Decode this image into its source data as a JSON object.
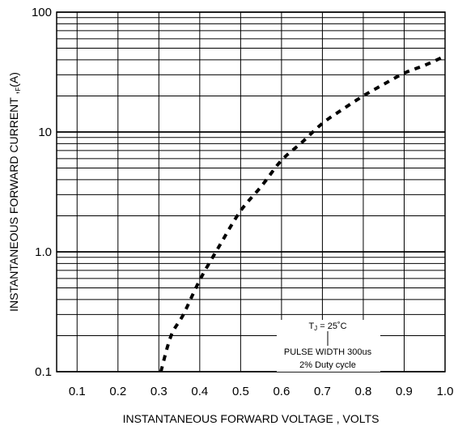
{
  "chart_data": {
    "type": "line",
    "title": "",
    "xlabel": "INSTANTANEOUS FORWARD VOLTAGE , VOLTS",
    "ylabel_prefix": "INSTANTANEOUS  FORWARD CURRENT ,",
    "ylabel_sub": "F",
    "ylabel_unit": "(A)",
    "xlim": [
      0.05,
      1.0
    ],
    "ylim": [
      0.1,
      100
    ],
    "y_scale": "log",
    "grid": true,
    "x_ticks": [
      0.1,
      0.2,
      0.3,
      0.4,
      0.5,
      0.6,
      0.7,
      0.8,
      0.9,
      1.0
    ],
    "x_tick_labels": [
      "0.1",
      "0.2",
      "0.3",
      "0.4",
      "0.5",
      "0.6",
      "0.7",
      "0.8",
      "0.9",
      "1.0"
    ],
    "y_tick_values": [
      0.1,
      1.0,
      10,
      100
    ],
    "y_tick_labels": [
      "0.1",
      "1.0",
      "10",
      "100"
    ],
    "series": [
      {
        "line_style": "dashed",
        "color": "#000000",
        "x": [
          0.305,
          0.33,
          0.36,
          0.4,
          0.45,
          0.5,
          0.55,
          0.6,
          0.65,
          0.7,
          0.75,
          0.8,
          0.85,
          0.9,
          0.95,
          1.0
        ],
        "y": [
          0.1,
          0.2,
          0.3,
          0.58,
          1.15,
          2.2,
          3.5,
          5.8,
          8.2,
          11.8,
          15.5,
          20.0,
          25.0,
          31.0,
          36.0,
          43.0
        ]
      }
    ],
    "annotation": {
      "tj_prefix": "T",
      "tj_sub": "J",
      "tj_value": " = 25˚C",
      "line2": "PULSE WIDTH 300us",
      "line3": "2% Duty cycle"
    }
  }
}
